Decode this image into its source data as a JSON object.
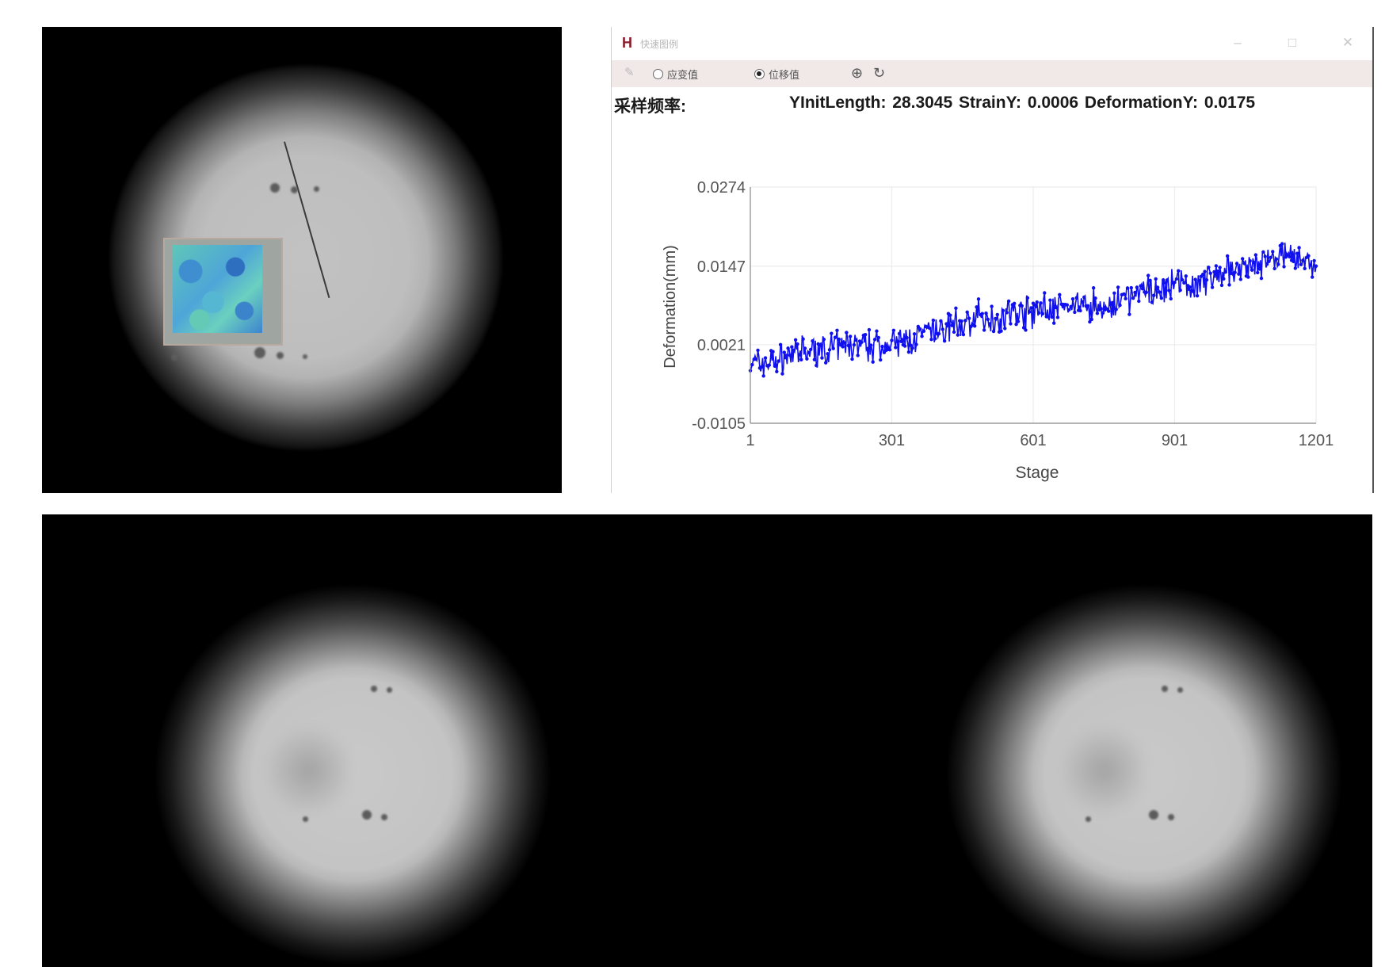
{
  "window": {
    "logo": "H",
    "title": "快速图例",
    "minimize_icon": "minimize-icon",
    "maximize_icon": "maximize-icon",
    "close_icon": "close-icon"
  },
  "toolbar": {
    "export_icon": "export-icon",
    "radio_strain": {
      "label": "应变值",
      "selected": false
    },
    "radio_displacement": {
      "label": "位移值",
      "selected": true
    },
    "zoom_icon": "zoom-icon",
    "reset_icon": "reset-icon"
  },
  "info": {
    "sample_rate_label": "采样频率:",
    "metrics_text": "YInitLength: 28.3045 StrainY:  0.0006  DeformationY:  0.0175"
  },
  "chart_data": {
    "type": "line",
    "xlabel": "Stage",
    "ylabel": "Deformation(mm)",
    "xlim": [
      1,
      1201
    ],
    "ylim": [
      -0.0105,
      0.0274
    ],
    "x_ticks": [
      "1",
      "301",
      "601",
      "901",
      "1201"
    ],
    "y_ticks": [
      "0.0274",
      "0.0147",
      "0.0021",
      "-0.0105"
    ],
    "grid": true,
    "marker": "dot",
    "color": "#1010ee",
    "series": [
      {
        "x": [
          1,
          50,
          100,
          150,
          200,
          250,
          301,
          350,
          400,
          450,
          500,
          550,
          601,
          650,
          700,
          750,
          800,
          850,
          901,
          950,
          1000,
          1050,
          1100,
          1150,
          1201
        ],
        "values": [
          -0.001,
          -0.0005,
          0.0005,
          0.0012,
          0.0018,
          0.002,
          0.0021,
          0.003,
          0.0045,
          0.0055,
          0.0062,
          0.007,
          0.0075,
          0.0082,
          0.0085,
          0.008,
          0.0095,
          0.0108,
          0.0115,
          0.0122,
          0.0135,
          0.0145,
          0.0152,
          0.016,
          0.015
        ]
      }
    ],
    "noise_amplitude": 0.003
  },
  "camera": {
    "main_view": "camera-view-main",
    "roi": "roi-strain-map",
    "left_view": "camera-view-left",
    "right_view": "camera-view-right"
  }
}
